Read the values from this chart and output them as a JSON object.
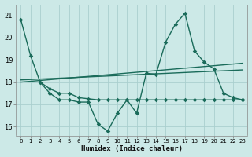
{
  "xlabel": "Humidex (Indice chaleur)",
  "bg_color": "#cce9e7",
  "grid_color": "#aacfce",
  "line_color": "#1a6b5a",
  "xlim": [
    -0.5,
    23.5
  ],
  "ylim": [
    15.6,
    21.5
  ],
  "yticks": [
    16,
    17,
    18,
    19,
    20,
    21
  ],
  "xticks": [
    0,
    1,
    2,
    3,
    4,
    5,
    6,
    7,
    8,
    9,
    10,
    11,
    12,
    13,
    14,
    15,
    16,
    17,
    18,
    19,
    20,
    21,
    22,
    23
  ],
  "line1_x": [
    0,
    1,
    2,
    3,
    4,
    5,
    6,
    7,
    8,
    9,
    10,
    11,
    12,
    13,
    14,
    15,
    16,
    17,
    18,
    19,
    20,
    21,
    22,
    23
  ],
  "line1_y": [
    20.8,
    19.2,
    18.0,
    17.5,
    17.2,
    17.2,
    17.1,
    17.1,
    16.1,
    15.8,
    16.6,
    17.2,
    16.6,
    18.4,
    18.35,
    19.8,
    20.6,
    21.1,
    19.4,
    18.9,
    18.6,
    17.5,
    17.3,
    17.2
  ],
  "line2_x": [
    2,
    3,
    4,
    5,
    6,
    7,
    8,
    9,
    10,
    11,
    12,
    13,
    14,
    15,
    16,
    17,
    18,
    19,
    20,
    21,
    22,
    23
  ],
  "line2_y": [
    18.0,
    17.7,
    17.5,
    17.5,
    17.3,
    17.25,
    17.2,
    17.2,
    17.2,
    17.2,
    17.2,
    17.2,
    17.2,
    17.2,
    17.2,
    17.2,
    17.2,
    17.2,
    17.2,
    17.2,
    17.2,
    17.2
  ],
  "line3_x": [
    0,
    23
  ],
  "line3_y": [
    18.0,
    18.85
  ],
  "line4_x": [
    0,
    23
  ],
  "line4_y": [
    18.1,
    18.55
  ]
}
